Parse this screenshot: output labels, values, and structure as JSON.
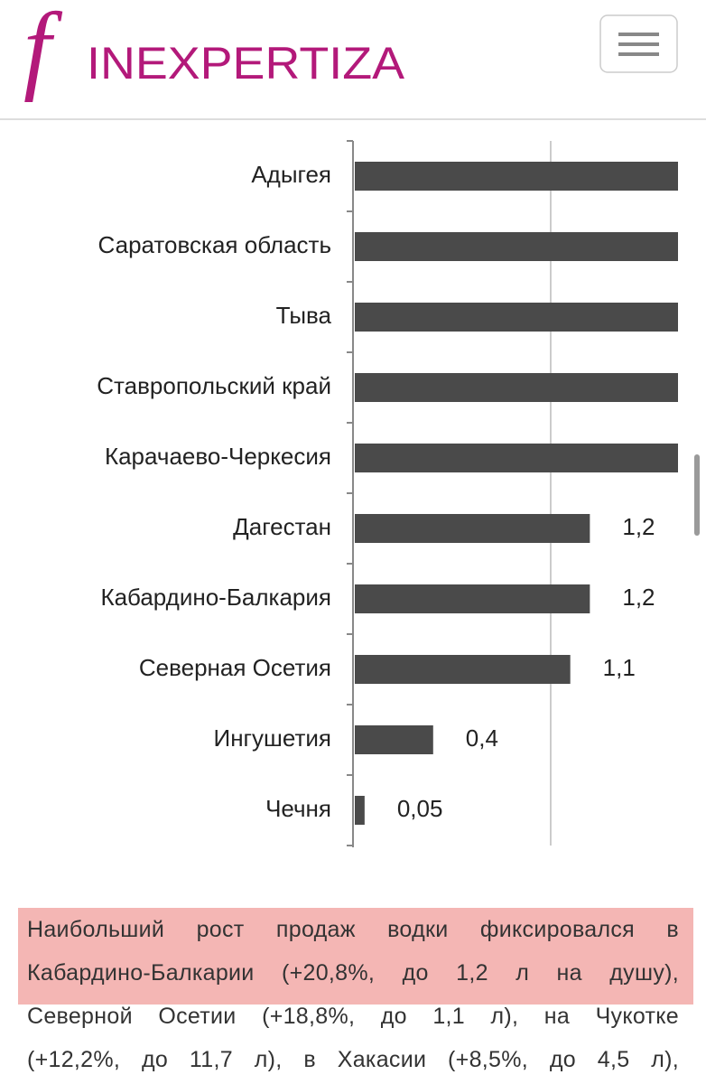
{
  "header": {
    "logo_letter": "f",
    "logo": "INEXPERTIZA"
  },
  "chart_data": {
    "type": "bar",
    "orientation": "horizontal",
    "categories": [
      "Адыгея",
      "Саратовская область",
      "Тыва",
      "Ставропольский край",
      "Карачаево-Черкесия",
      "Дагестан",
      "Кабардино-Балкария",
      "Северная Осетия",
      "Ингушетия",
      "Чечня"
    ],
    "values": [
      1.65,
      1.65,
      1.65,
      1.65,
      1.65,
      1.2,
      1.2,
      1.1,
      0.4,
      0.05
    ],
    "value_labels": [
      null,
      null,
      null,
      null,
      null,
      "1,2",
      "1,2",
      "1,1",
      "0,4",
      "0,05"
    ],
    "color": "#4a4a4a",
    "xlim": [
      0,
      1.65
    ],
    "xgrid": [
      1
    ]
  },
  "article": {
    "lines": [
      "Наибольший рост продаж водки фиксировался в",
      "Кабардино-Балкарии (+20,8%, до 1,2 л на душу),",
      "Северной Осетии (+18,8%, до 1,1 л), на Чукотке",
      "(+12,2%, до 11,7 л), в Хакасии (+8,5%, до 4,5 л),"
    ],
    "highlighted_lines": 2
  }
}
